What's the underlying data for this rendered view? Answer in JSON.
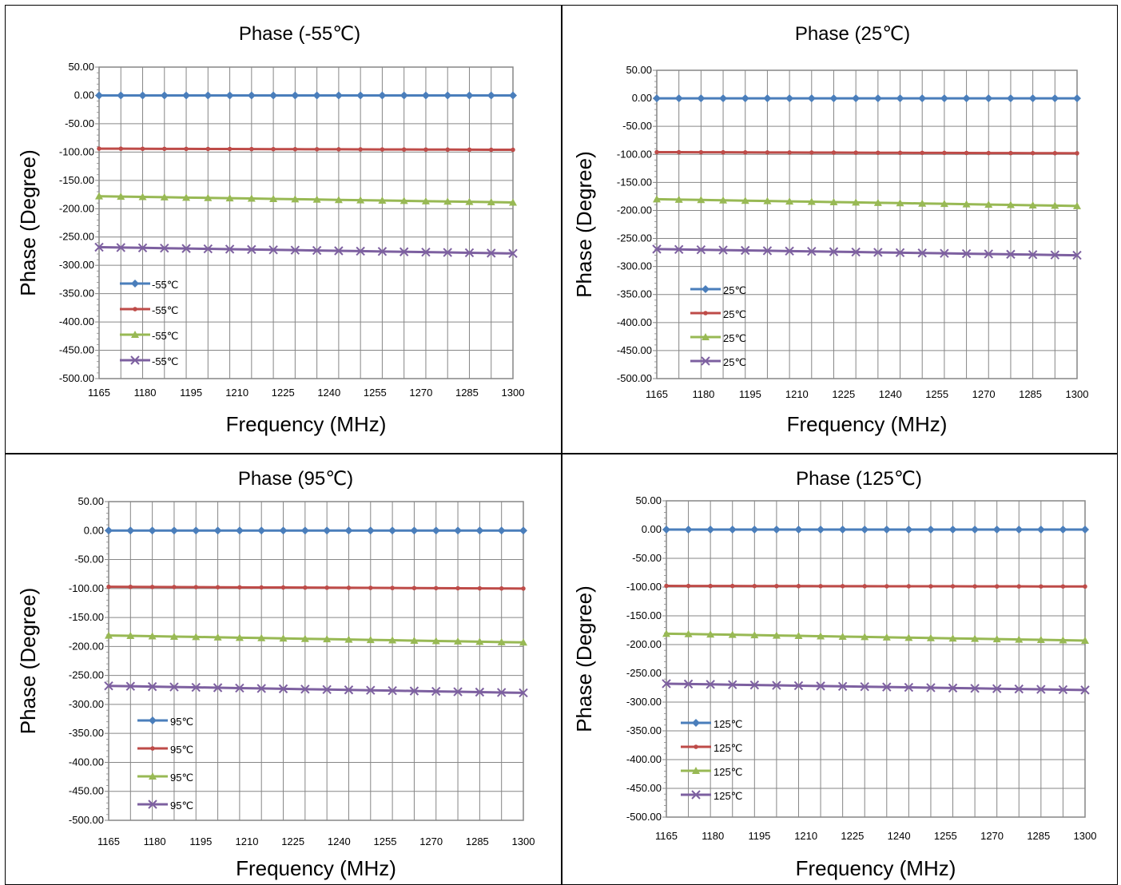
{
  "chart_data": [
    {
      "type": "line",
      "title": "Phase  (-55℃)",
      "xlabel": "Frequency (MHz)",
      "ylabel": "Phase (Degree)",
      "ylim": [
        -500,
        50
      ],
      "yticks": [
        "50.00",
        "0.00",
        "-50.00",
        "-100.00",
        "-150.00",
        "-200.00",
        "-250.00",
        "-300.00",
        "-350.00",
        "-400.00",
        "-450.00",
        "-500.00"
      ],
      "xticks": [
        "1165",
        "1180",
        "1195",
        "1210",
        "1225",
        "1240",
        "1255",
        "1270",
        "1285",
        "1300"
      ],
      "grid": true,
      "legend_placement": "lower-left",
      "series": [
        {
          "name": "-55℃",
          "marker": "diamond",
          "color": "#4a7ebb",
          "start": 0,
          "end": 0
        },
        {
          "name": "-55℃",
          "marker": "dot",
          "color": "#be4b48",
          "start": -94,
          "end": -96
        },
        {
          "name": "-55℃",
          "marker": "triangle",
          "color": "#98b954",
          "start": -178,
          "end": -189
        },
        {
          "name": "-55℃",
          "marker": "x",
          "color": "#7d60a0",
          "start": -268,
          "end": -279
        }
      ]
    },
    {
      "type": "line",
      "title": "Phase  (25℃)",
      "xlabel": "Frequency (MHz)",
      "ylabel": "Phase (Degree)",
      "ylim": [
        -500,
        50
      ],
      "yticks": [
        "50.00",
        "0.00",
        "-50.00",
        "-100.00",
        "-150.00",
        "-200.00",
        "-250.00",
        "-300.00",
        "-350.00",
        "-400.00",
        "-450.00",
        "-500.00"
      ],
      "xticks": [
        "1165",
        "1180",
        "1195",
        "1210",
        "1225",
        "1240",
        "1255",
        "1270",
        "1285",
        "1300"
      ],
      "grid": true,
      "legend_placement": "lower-left",
      "series": [
        {
          "name": "25℃",
          "marker": "diamond",
          "color": "#4a7ebb",
          "start": 0,
          "end": 0
        },
        {
          "name": "25℃",
          "marker": "dot",
          "color": "#be4b48",
          "start": -96,
          "end": -98
        },
        {
          "name": "25℃",
          "marker": "triangle",
          "color": "#98b954",
          "start": -180,
          "end": -192
        },
        {
          "name": "25℃",
          "marker": "x",
          "color": "#7d60a0",
          "start": -269,
          "end": -280
        }
      ]
    },
    {
      "type": "line",
      "title": "Phase  (95℃)",
      "xlabel": "Frequency (MHz)",
      "ylabel": "Phase (Degree)",
      "ylim": [
        -500,
        50
      ],
      "yticks": [
        "50.00",
        "0.00",
        "-50.00",
        "-100.00",
        "-150.00",
        "-200.00",
        "-250.00",
        "-300.00",
        "-350.00",
        "-400.00",
        "-450.00",
        "-500.00"
      ],
      "xticks": [
        "1165",
        "1180",
        "1195",
        "1210",
        "1225",
        "1240",
        "1255",
        "1270",
        "1285",
        "1300"
      ],
      "grid": true,
      "legend_placement": "lower-left",
      "series": [
        {
          "name": "95℃",
          "marker": "diamond",
          "color": "#4a7ebb",
          "start": 0,
          "end": 0
        },
        {
          "name": "95℃",
          "marker": "dot",
          "color": "#be4b48",
          "start": -97,
          "end": -100
        },
        {
          "name": "95℃",
          "marker": "triangle",
          "color": "#98b954",
          "start": -181,
          "end": -193
        },
        {
          "name": "95℃",
          "marker": "x",
          "color": "#7d60a0",
          "start": -268,
          "end": -280
        }
      ]
    },
    {
      "type": "line",
      "title": "Phase  (125℃)",
      "xlabel": "Frequency (MHz)",
      "ylabel": "Phase (Degree)",
      "ylim": [
        -500,
        50
      ],
      "yticks": [
        "50.00",
        "0.00",
        "-50.00",
        "-100.00",
        "-150.00",
        "-200.00",
        "-250.00",
        "-300.00",
        "-350.00",
        "-400.00",
        "-450.00",
        "-500.00"
      ],
      "xticks": [
        "1165",
        "1180",
        "1195",
        "1210",
        "1225",
        "1240",
        "1255",
        "1270",
        "1285",
        "1300"
      ],
      "grid": true,
      "legend_placement": "lower-left",
      "series": [
        {
          "name": "125℃",
          "marker": "diamond",
          "color": "#4a7ebb",
          "start": 0,
          "end": 0
        },
        {
          "name": "125℃",
          "marker": "dot",
          "color": "#be4b48",
          "start": -98,
          "end": -99
        },
        {
          "name": "125℃",
          "marker": "triangle",
          "color": "#98b954",
          "start": -181,
          "end": -193
        },
        {
          "name": "125℃",
          "marker": "x",
          "color": "#7d60a0",
          "start": -268,
          "end": -279
        }
      ]
    }
  ]
}
